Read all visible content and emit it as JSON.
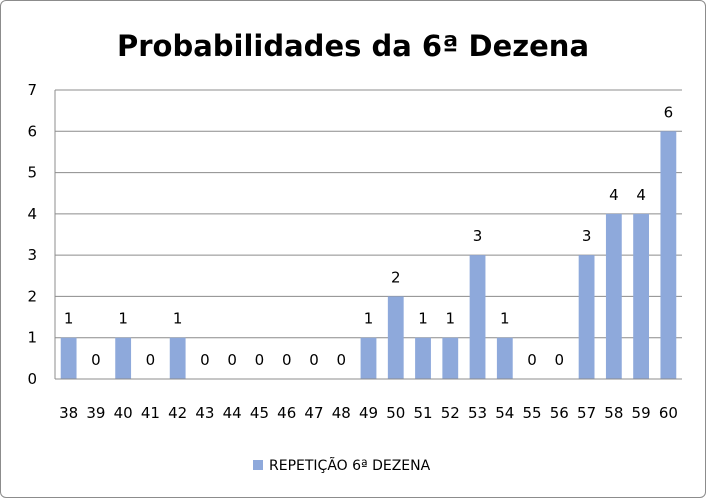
{
  "chart_data": {
    "type": "bar",
    "title": "Probabilidades da 6ª Dezena",
    "xlabel": "",
    "ylabel": "",
    "ylim": [
      0,
      7
    ],
    "yticks": [
      "0",
      "1",
      "2",
      "3",
      "4",
      "5",
      "6",
      "7"
    ],
    "grid": true,
    "legend_position": "bottom",
    "categories": [
      "38",
      "39",
      "40",
      "41",
      "42",
      "43",
      "44",
      "45",
      "46",
      "47",
      "48",
      "49",
      "50",
      "51",
      "52",
      "53",
      "54",
      "55",
      "56",
      "57",
      "58",
      "59",
      "60"
    ],
    "series": [
      {
        "name": "REPETIÇÃO 6ª DEZENA",
        "color": "#8ea9db",
        "values": [
          1,
          0,
          1,
          0,
          1,
          0,
          0,
          0,
          0,
          0,
          0,
          1,
          2,
          1,
          1,
          3,
          1,
          0,
          0,
          3,
          4,
          4,
          6
        ],
        "labels": [
          "1",
          "0",
          "1",
          "0",
          "1",
          "0",
          "0",
          "0",
          "0",
          "0",
          "0",
          "1",
          "2",
          "1",
          "1",
          "3",
          "1",
          "0",
          "0",
          "3",
          "4",
          "4",
          "6"
        ]
      }
    ]
  }
}
